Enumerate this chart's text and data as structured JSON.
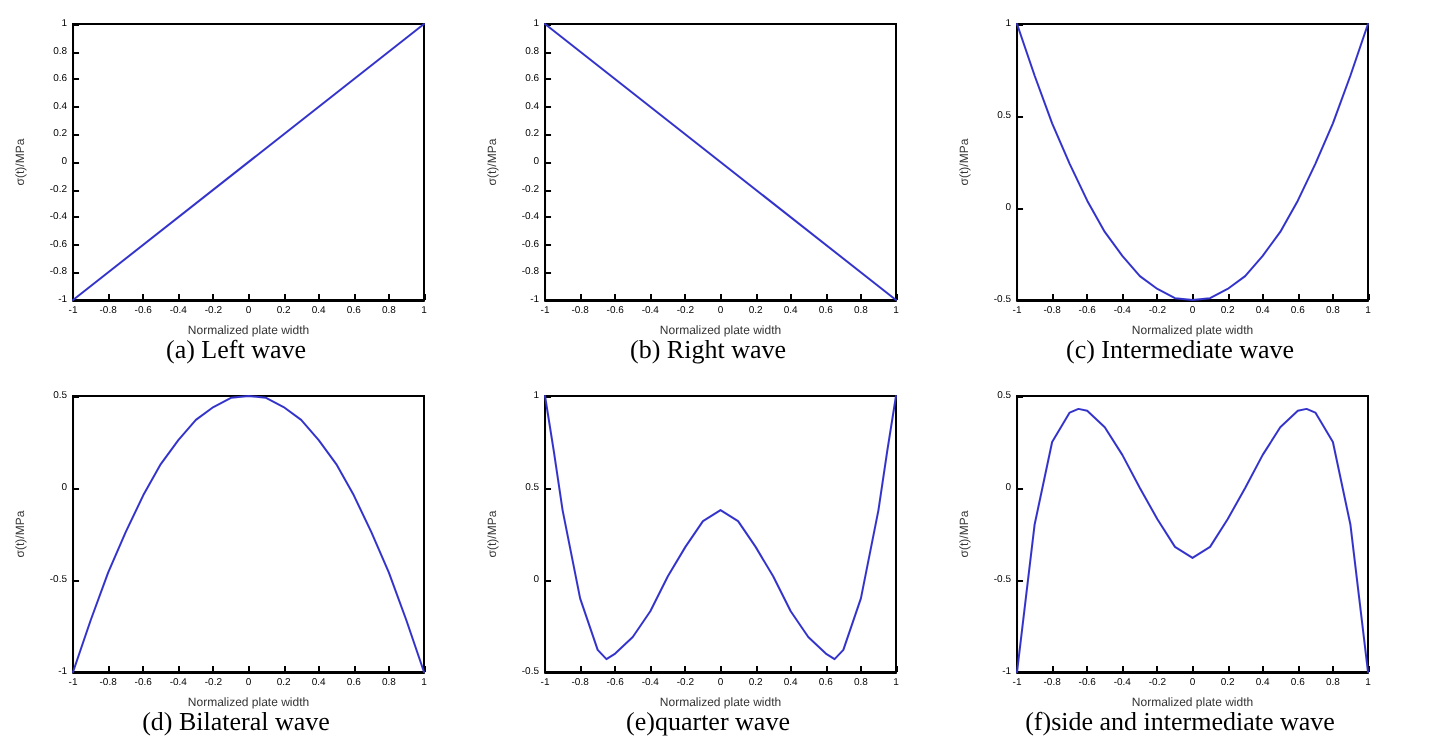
{
  "chart_data": [
    {
      "type": "line",
      "title": "(a) Left wave",
      "xlabel": "Normalized plate width",
      "ylabel": "σ(t)/MPa",
      "x": [
        -1,
        1
      ],
      "values": [
        -1,
        1
      ],
      "color": "#3333cc",
      "xlim": [
        -1,
        1
      ],
      "ylim": [
        -1,
        1
      ],
      "xticks": [
        -1,
        -0.8,
        -0.6,
        -0.4,
        -0.2,
        0,
        0.2,
        0.4,
        0.6,
        0.8,
        1
      ],
      "yticks": [
        -1,
        -0.8,
        -0.6,
        -0.4,
        -0.2,
        0,
        0.2,
        0.4,
        0.6,
        0.8,
        1
      ],
      "grid": false,
      "marker": "none",
      "line_style": "solid"
    },
    {
      "type": "line",
      "title": "(b) Right wave",
      "xlabel": "Normalized plate width",
      "ylabel": "σ(t)/MPa",
      "x": [
        -1,
        1
      ],
      "values": [
        1,
        -1
      ],
      "color": "#3333cc",
      "xlim": [
        -1,
        1
      ],
      "ylim": [
        -1,
        1
      ],
      "xticks": [
        -1,
        -0.8,
        -0.6,
        -0.4,
        -0.2,
        0,
        0.2,
        0.4,
        0.6,
        0.8,
        1
      ],
      "yticks": [
        -1,
        -0.8,
        -0.6,
        -0.4,
        -0.2,
        0,
        0.2,
        0.4,
        0.6,
        0.8,
        1
      ],
      "grid": false,
      "marker": "none",
      "line_style": "solid"
    },
    {
      "type": "line",
      "title": "(c) Intermediate wave",
      "xlabel": "Normalized plate width",
      "ylabel": "σ(t)/MPa",
      "x": [
        -1,
        -0.9,
        -0.8,
        -0.7,
        -0.6,
        -0.5,
        -0.4,
        -0.3,
        -0.2,
        -0.1,
        0,
        0.1,
        0.2,
        0.3,
        0.4,
        0.5,
        0.6,
        0.7,
        0.8,
        0.9,
        1
      ],
      "values": [
        1,
        0.72,
        0.46,
        0.24,
        0.04,
        -0.13,
        -0.26,
        -0.37,
        -0.44,
        -0.49,
        -0.5,
        -0.49,
        -0.44,
        -0.37,
        -0.26,
        -0.13,
        0.04,
        0.24,
        0.46,
        0.72,
        1
      ],
      "color": "#3333cc",
      "xlim": [
        -1,
        1
      ],
      "ylim": [
        -0.5,
        1
      ],
      "xticks": [
        -1,
        -0.8,
        -0.6,
        -0.4,
        -0.2,
        0,
        0.2,
        0.4,
        0.6,
        0.8,
        1
      ],
      "yticks": [
        -0.5,
        0,
        0.5,
        1
      ],
      "grid": false,
      "marker": "none",
      "line_style": "solid"
    },
    {
      "type": "line",
      "title": "(d) Bilateral wave",
      "xlabel": "Normalized plate width",
      "ylabel": "σ(t)/MPa",
      "x": [
        -1,
        -0.9,
        -0.8,
        -0.7,
        -0.6,
        -0.5,
        -0.4,
        -0.3,
        -0.2,
        -0.1,
        0,
        0.1,
        0.2,
        0.3,
        0.4,
        0.5,
        0.6,
        0.7,
        0.8,
        0.9,
        1
      ],
      "values": [
        -1,
        -0.72,
        -0.46,
        -0.24,
        -0.04,
        0.13,
        0.26,
        0.37,
        0.44,
        0.49,
        0.5,
        0.49,
        0.44,
        0.37,
        0.26,
        0.13,
        -0.04,
        -0.24,
        -0.46,
        -0.72,
        -1
      ],
      "color": "#3333cc",
      "xlim": [
        -1,
        1
      ],
      "ylim": [
        -1,
        0.5
      ],
      "xticks": [
        -1,
        -0.8,
        -0.6,
        -0.4,
        -0.2,
        0,
        0.2,
        0.4,
        0.6,
        0.8,
        1
      ],
      "yticks": [
        -1,
        -0.5,
        0,
        0.5
      ],
      "grid": false,
      "marker": "none",
      "line_style": "solid"
    },
    {
      "type": "line",
      "title": "(e)quarter wave",
      "xlabel": "Normalized plate width",
      "ylabel": "σ(t)/MPa",
      "x": [
        -1,
        -0.95,
        -0.9,
        -0.8,
        -0.7,
        -0.65,
        -0.6,
        -0.5,
        -0.4,
        -0.3,
        -0.2,
        -0.1,
        0,
        0.1,
        0.2,
        0.3,
        0.4,
        0.5,
        0.6,
        0.65,
        0.7,
        0.8,
        0.9,
        0.95,
        1
      ],
      "values": [
        1,
        0.7,
        0.38,
        -0.1,
        -0.38,
        -0.43,
        -0.4,
        -0.31,
        -0.17,
        0.02,
        0.18,
        0.32,
        0.38,
        0.32,
        0.18,
        0.02,
        -0.17,
        -0.31,
        -0.4,
        -0.43,
        -0.38,
        -0.1,
        0.38,
        0.7,
        1
      ],
      "color": "#3333cc",
      "xlim": [
        -1,
        1
      ],
      "ylim": [
        -0.5,
        1
      ],
      "xticks": [
        -1,
        -0.8,
        -0.6,
        -0.4,
        -0.2,
        0,
        0.2,
        0.4,
        0.6,
        0.8,
        1
      ],
      "yticks": [
        -0.5,
        0,
        0.5,
        1
      ],
      "grid": false,
      "marker": "none",
      "line_style": "solid"
    },
    {
      "type": "line",
      "title": "(f)side and intermediate wave",
      "xlabel": "Normalized plate width",
      "ylabel": "σ(t)/MPa",
      "x": [
        -1,
        -0.95,
        -0.9,
        -0.8,
        -0.7,
        -0.65,
        -0.6,
        -0.5,
        -0.4,
        -0.3,
        -0.2,
        -0.1,
        0,
        0.1,
        0.2,
        0.3,
        0.4,
        0.5,
        0.6,
        0.65,
        0.7,
        0.8,
        0.9,
        0.95,
        1
      ],
      "values": [
        -1,
        -0.6,
        -0.2,
        0.25,
        0.41,
        0.43,
        0.42,
        0.33,
        0.18,
        0,
        -0.17,
        -0.32,
        -0.38,
        -0.32,
        -0.17,
        0,
        0.18,
        0.33,
        0.42,
        0.43,
        0.41,
        0.25,
        -0.2,
        -0.6,
        -1
      ],
      "color": "#3333cc",
      "xlim": [
        -1,
        1
      ],
      "ylim": [
        -1,
        0.5
      ],
      "xticks": [
        -1,
        -0.8,
        -0.6,
        -0.4,
        -0.2,
        0,
        0.2,
        0.4,
        0.6,
        0.8,
        1
      ],
      "yticks": [
        -1,
        -0.5,
        0,
        0.5
      ],
      "grid": false,
      "marker": "none",
      "line_style": "solid"
    }
  ]
}
